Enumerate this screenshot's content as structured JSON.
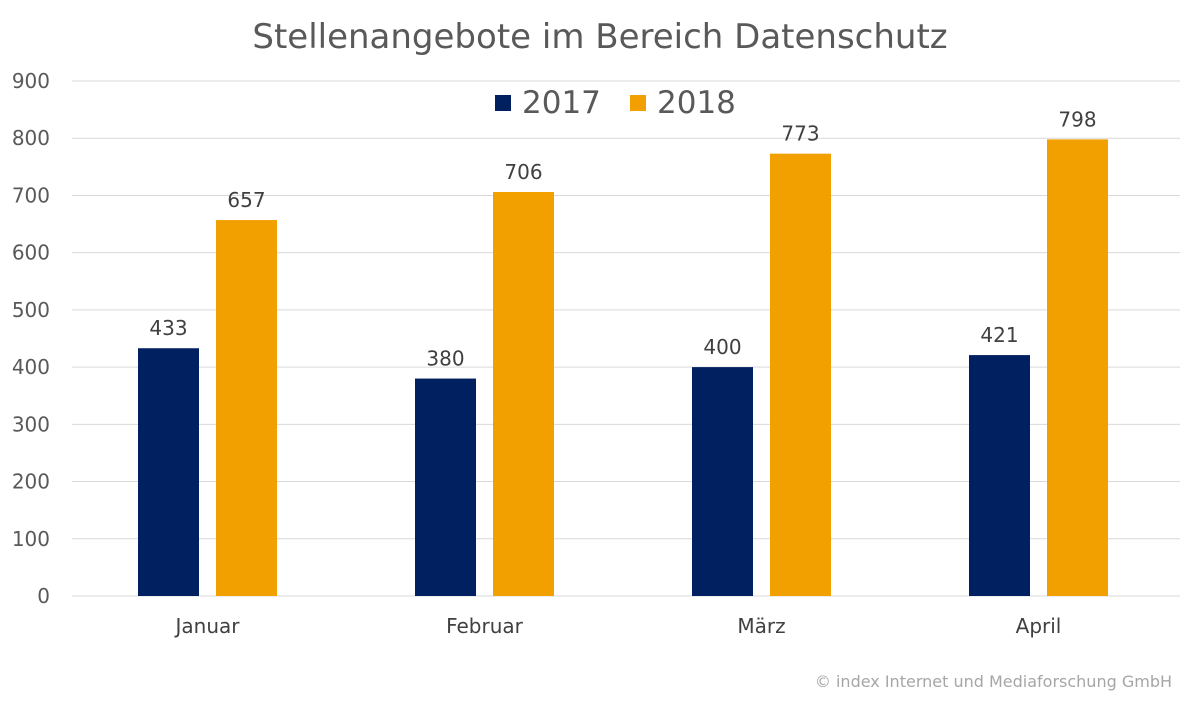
{
  "chart_data": {
    "type": "bar",
    "title": "Stellenangebote im Bereich Datenschutz",
    "categories": [
      "Januar",
      "Februar",
      "März",
      "April"
    ],
    "series": [
      {
        "name": "2017",
        "color": "#002060",
        "values": [
          433,
          380,
          400,
          421
        ]
      },
      {
        "name": "2018",
        "color": "#F2A000",
        "values": [
          657,
          706,
          773,
          798
        ]
      }
    ],
    "ylim": [
      0,
      900
    ],
    "yticks": [
      0,
      100,
      200,
      300,
      400,
      500,
      600,
      700,
      800,
      900
    ],
    "grid": true,
    "legend": "top-center",
    "data_labels": true
  },
  "credit": "© index Internet und Mediaforschung GmbH"
}
